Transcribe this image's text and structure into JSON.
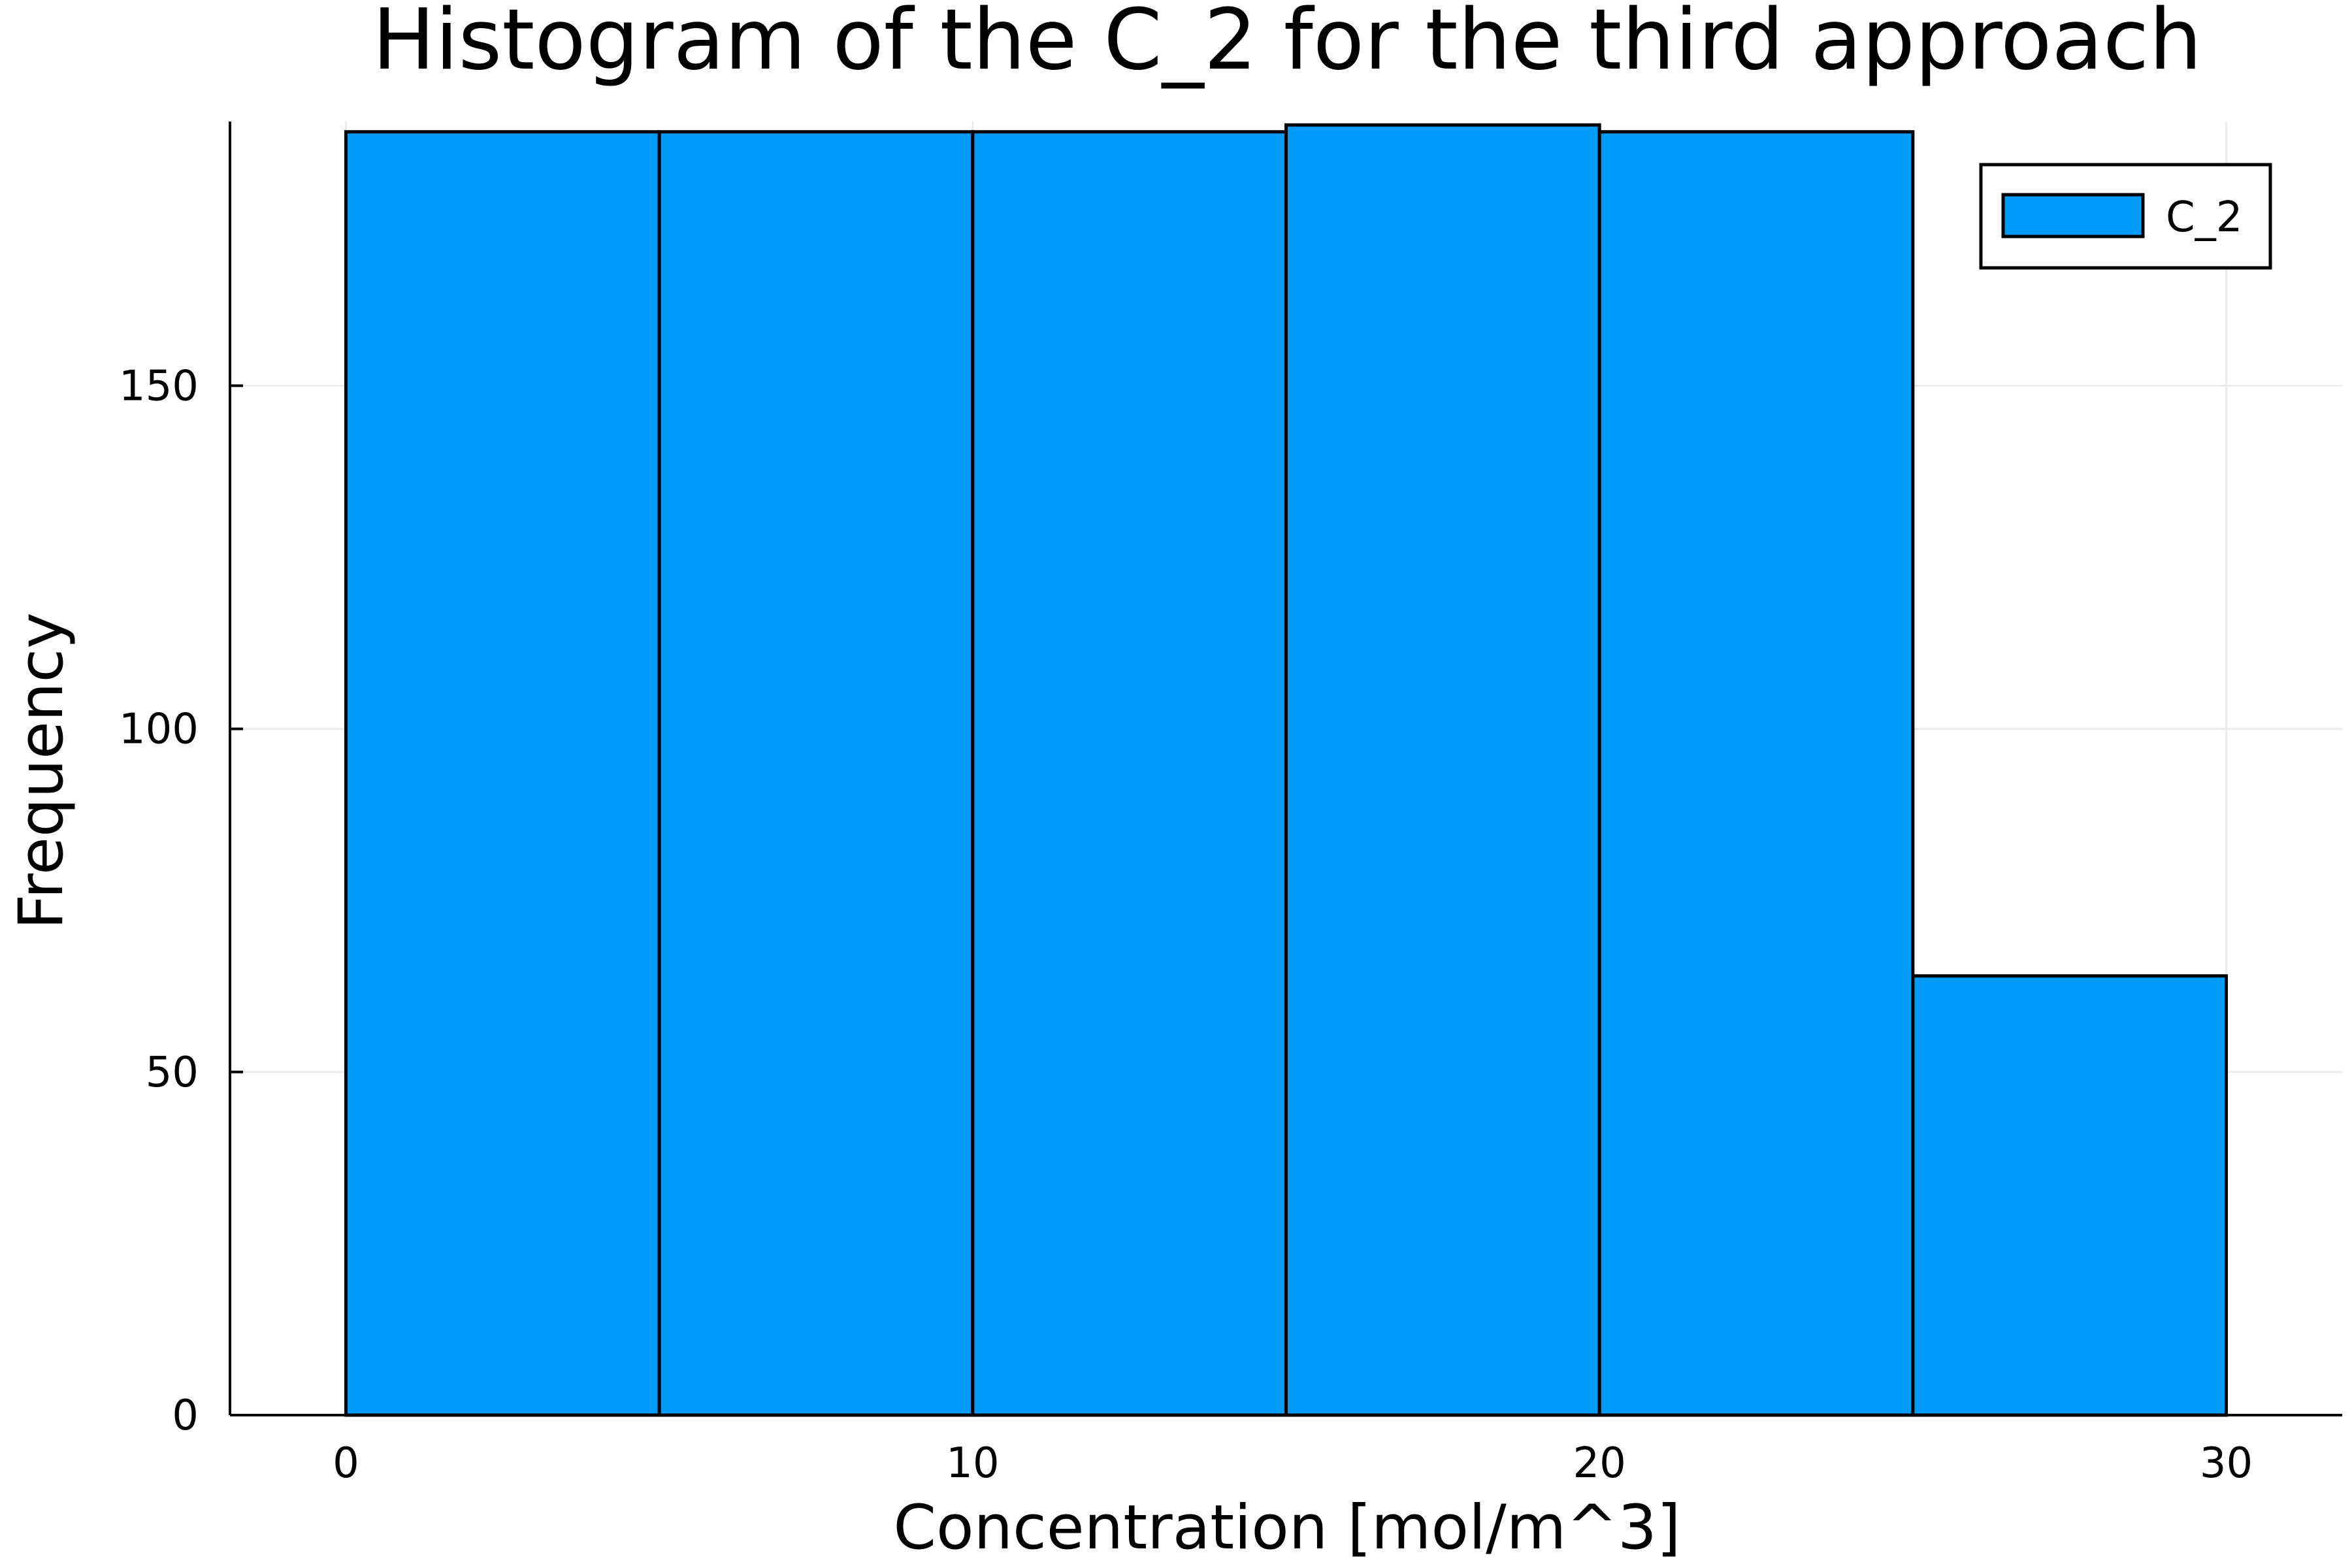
{
  "chart_data": {
    "type": "bar",
    "title": "Histogram of the C_2 for the third approach",
    "xlabel": "Concentration [mol/m^3]",
    "ylabel": "Frequency",
    "xlim": [
      -1.85,
      31.85
    ],
    "ylim": [
      0,
      188.5
    ],
    "xticks": [
      0,
      10,
      20,
      30
    ],
    "yticks": [
      0,
      50,
      100,
      150
    ],
    "grid": true,
    "legend_position": "top-right",
    "bin_edges": [
      0,
      5,
      10,
      15,
      20,
      25,
      30
    ],
    "series": [
      {
        "name": "C_2",
        "color": "#009af9",
        "values": [
          187,
          187,
          187,
          188,
          187,
          64
        ]
      }
    ]
  }
}
